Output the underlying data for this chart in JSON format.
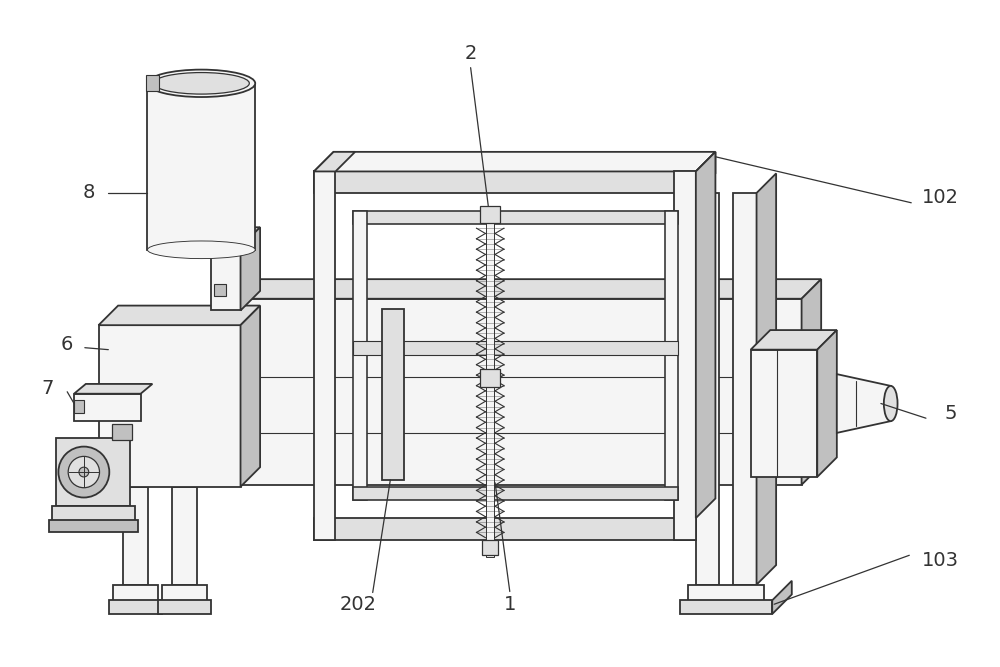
{
  "bg_color": "#ffffff",
  "line_color": "#333333",
  "light_fill": "#f5f5f5",
  "medium_fill": "#e0e0e0",
  "dark_fill": "#c0c0c0",
  "label_fontsize": 14,
  "figsize": [
    10.0,
    6.67
  ]
}
